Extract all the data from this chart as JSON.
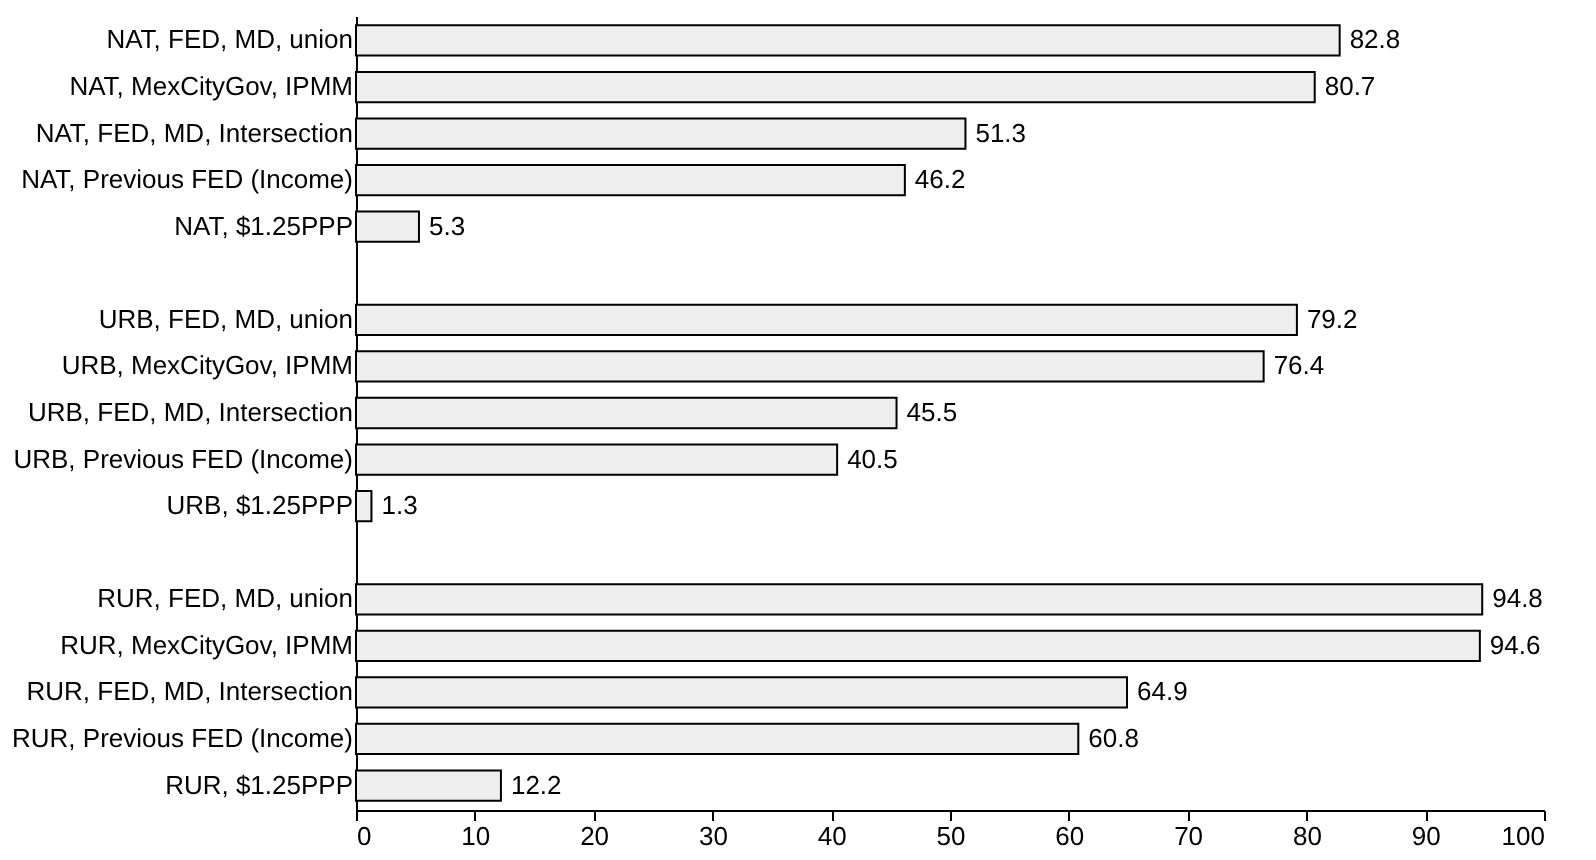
{
  "chart_data": {
    "type": "bar",
    "orientation": "horizontal",
    "categories": [
      "NAT, FED, MD, union",
      "NAT, MexCityGov, IPMM",
      "NAT, FED, MD, Intersection",
      "NAT, Previous FED (Income)",
      "NAT, $1.25PPP",
      null,
      "URB, FED, MD, union",
      "URB, MexCityGov, IPMM",
      "URB, FED, MD, Intersection",
      "URB, Previous FED (Income)",
      "URB, $1.25PPP",
      null,
      "RUR, FED, MD, union",
      "RUR, MexCityGov, IPMM",
      "RUR, FED, MD, Intersection",
      "RUR, Previous FED (Income)",
      "RUR, $1.25PPP"
    ],
    "values": [
      82.8,
      80.7,
      51.3,
      46.2,
      5.3,
      null,
      79.2,
      76.4,
      45.5,
      40.5,
      1.3,
      null,
      94.8,
      94.6,
      64.9,
      60.8,
      12.2
    ],
    "color": "#eeeeee",
    "xlim": [
      0,
      100
    ],
    "xticks": [
      0,
      10,
      20,
      30,
      40,
      50,
      60,
      70,
      80,
      90,
      100
    ],
    "data_labels": true
  }
}
